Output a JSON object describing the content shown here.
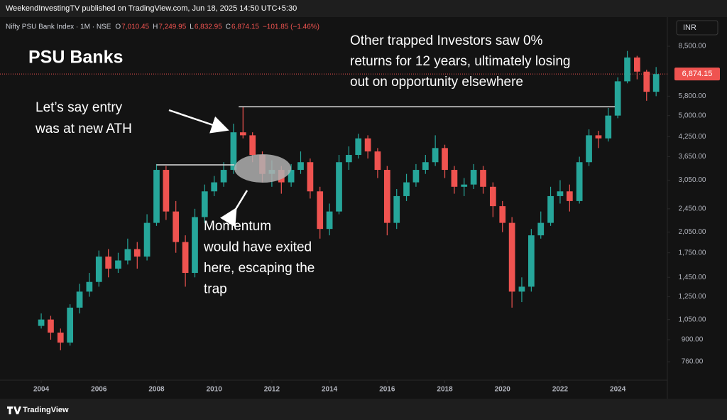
{
  "header": {
    "text": "WeekendInvestingTV published on TradingView.com, Jun 18, 2025 14:50 UTC+5:30"
  },
  "legend": {
    "symbol": "Nifty PSU Bank Index · 1M · NSE",
    "ohlc": [
      {
        "key": "O",
        "value": "7,010.45"
      },
      {
        "key": "H",
        "value": "7,249.95"
      },
      {
        "key": "L",
        "value": "6,832.95"
      },
      {
        "key": "C",
        "value": "6,874.15"
      }
    ],
    "change": "−101.85 (−1.46%)"
  },
  "currency": "INR",
  "footer": "TradingView",
  "chart_data": {
    "type": "candlestick",
    "title": "PSU Banks",
    "annotations": {
      "trapped": [
        "Other trapped Investors saw 0%",
        "returns for 12 years, ultimately losing",
        "out on opportunity elsewhere"
      ],
      "entry": [
        "Let’s say entry",
        "was at new ATH"
      ],
      "momentum": [
        "Momentum",
        "would have exited",
        "here, escaping the",
        "trap"
      ]
    },
    "log_scale": true,
    "up_color": "#26a69a",
    "down_color": "#ef5350",
    "x": [
      2004.0,
      2004.33,
      2004.67,
      2005.0,
      2005.33,
      2005.67,
      2006.0,
      2006.33,
      2006.67,
      2007.0,
      2007.33,
      2007.67,
      2008.0,
      2008.33,
      2008.67,
      2009.0,
      2009.33,
      2009.67,
      2010.0,
      2010.33,
      2010.67,
      2011.0,
      2011.33,
      2011.67,
      2012.0,
      2012.33,
      2012.67,
      2013.0,
      2013.33,
      2013.67,
      2014.0,
      2014.33,
      2014.67,
      2015.0,
      2015.33,
      2015.67,
      2016.0,
      2016.33,
      2016.67,
      2017.0,
      2017.33,
      2017.67,
      2018.0,
      2018.33,
      2018.67,
      2019.0,
      2019.33,
      2019.67,
      2020.0,
      2020.33,
      2020.67,
      2021.0,
      2021.33,
      2021.67,
      2022.0,
      2022.33,
      2022.67,
      2023.0,
      2023.33,
      2023.67,
      2024.0,
      2024.33,
      2024.67,
      2025.0,
      2025.33
    ],
    "open": [
      1000,
      1050,
      950,
      880,
      1150,
      1300,
      1400,
      1700,
      1550,
      1650,
      1800,
      1700,
      2200,
      3300,
      2400,
      1900,
      1500,
      2300,
      2800,
      3000,
      3300,
      4400,
      4300,
      3700,
      3200,
      3300,
      3000,
      3300,
      3500,
      2800,
      2100,
      2400,
      3500,
      3700,
      4200,
      3800,
      3300,
      2200,
      2700,
      3000,
      3300,
      3500,
      3900,
      3300,
      2900,
      2950,
      3300,
      2900,
      2500,
      2200,
      1300,
      1350,
      2000,
      2200,
      2700,
      2800,
      2600,
      3500,
      4300,
      4200,
      5000,
      6500,
      7800,
      7000,
      6000
    ],
    "high": [
      1100,
      1080,
      980,
      1180,
      1380,
      1500,
      1780,
      1800,
      1750,
      1950,
      1900,
      2350,
      3450,
      3400,
      2600,
      2000,
      2450,
      2950,
      3150,
      3500,
      4700,
      5350,
      4400,
      3800,
      3550,
      3400,
      3450,
      3800,
      3600,
      2900,
      2550,
      3700,
      3950,
      4350,
      4300,
      3900,
      3400,
      2850,
      3200,
      3450,
      3700,
      4300,
      4000,
      3400,
      3100,
      3450,
      3400,
      3000,
      2600,
      2300,
      1450,
      2100,
      2400,
      2900,
      3050,
      2950,
      3650,
      4500,
      4450,
      5300,
      6700,
      8200,
      7900,
      7100,
      7250
    ],
    "low": [
      980,
      900,
      830,
      860,
      1100,
      1250,
      1350,
      1450,
      1500,
      1600,
      1550,
      1650,
      2150,
      2250,
      1750,
      1350,
      1450,
      2200,
      2700,
      2900,
      3200,
      4200,
      3500,
      3000,
      2900,
      2750,
      2900,
      3200,
      2650,
      1950,
      2000,
      2350,
      3300,
      3600,
      3600,
      3100,
      2000,
      2100,
      2600,
      2900,
      3200,
      3400,
      3100,
      2750,
      2700,
      2850,
      2750,
      2300,
      2050,
      1150,
      1200,
      1300,
      1950,
      2150,
      2550,
      2400,
      2550,
      3400,
      3900,
      4100,
      4900,
      6400,
      6600,
      5600,
      5800
    ],
    "close": [
      1050,
      950,
      880,
      1150,
      1300,
      1400,
      1700,
      1550,
      1650,
      1800,
      1700,
      2200,
      3300,
      2400,
      1900,
      1500,
      2300,
      2800,
      3000,
      3300,
      4400,
      4300,
      3700,
      3200,
      3300,
      3000,
      3300,
      3500,
      2800,
      2100,
      2400,
      3500,
      3700,
      4200,
      3800,
      3300,
      2200,
      2700,
      3000,
      3300,
      3500,
      3900,
      3300,
      2900,
      2950,
      3300,
      2900,
      2500,
      2200,
      1300,
      1350,
      2000,
      2200,
      2700,
      2800,
      2600,
      3500,
      4300,
      4200,
      5000,
      6500,
      7800,
      7000,
      6000,
      6870
    ],
    "levels": [
      {
        "value": 3430,
        "from": 2008.0,
        "to": 2010.7
      },
      {
        "value": 5350,
        "from": 2010.85,
        "to": 2023.9
      }
    ],
    "current_price": {
      "value": 6874.15,
      "label": "6,874.15"
    },
    "xlim": [
      2002.57,
      2025.72
    ],
    "xticks": [
      2004,
      2006,
      2008,
      2010,
      2012,
      2014,
      2016,
      2018,
      2020,
      2022,
      2024
    ],
    "ylim": [
      660,
      10570
    ],
    "yticks": [
      {
        "value": 760,
        "label": "760.00"
      },
      {
        "value": 900,
        "label": "900.00"
      },
      {
        "value": 1050,
        "label": "1,050.00"
      },
      {
        "value": 1250,
        "label": "1,250.00"
      },
      {
        "value": 1450,
        "label": "1,450.00"
      },
      {
        "value": 1750,
        "label": "1,750.00"
      },
      {
        "value": 2050,
        "label": "2,050.00"
      },
      {
        "value": 2450,
        "label": "2,450.00"
      },
      {
        "value": 3050,
        "label": "3,050.00"
      },
      {
        "value": 3650,
        "label": "3,650.00"
      },
      {
        "value": 4250,
        "label": "4,250.00"
      },
      {
        "value": 5000,
        "label": "5,000.00"
      },
      {
        "value": 5800,
        "label": "5,800.00"
      },
      {
        "value": 8500,
        "label": "8,500.00"
      }
    ]
  }
}
